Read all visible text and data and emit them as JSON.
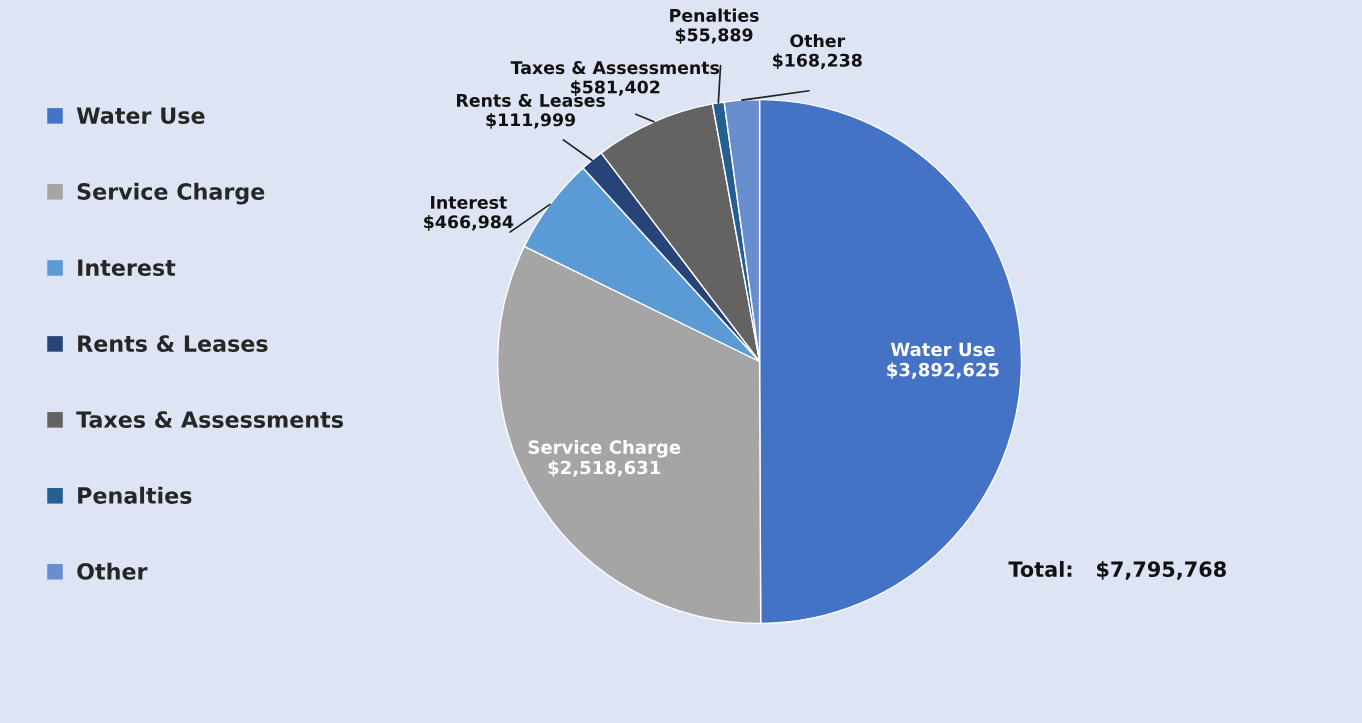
{
  "chart_data": {
    "type": "pie",
    "categories": [
      "Water Use",
      "Service Charge",
      "Interest",
      "Rents & Leases",
      "Taxes & Assessments",
      "Penalties",
      "Other"
    ],
    "values": [
      3892625,
      2518631,
      466984,
      111999,
      581402,
      55889,
      168238
    ],
    "value_labels": [
      "$3,892,625",
      "$2,518,631",
      "$466,984",
      "$111,999",
      "$581,402",
      "$55,889",
      "$168,238"
    ],
    "colors": [
      "#4472c4",
      "#a5a5a5",
      "#5b9bd5",
      "#264478",
      "#636363",
      "#255e91",
      "#698ed0"
    ],
    "legend": "left",
    "annotations": [
      "Total:   $7,795,768"
    ]
  }
}
